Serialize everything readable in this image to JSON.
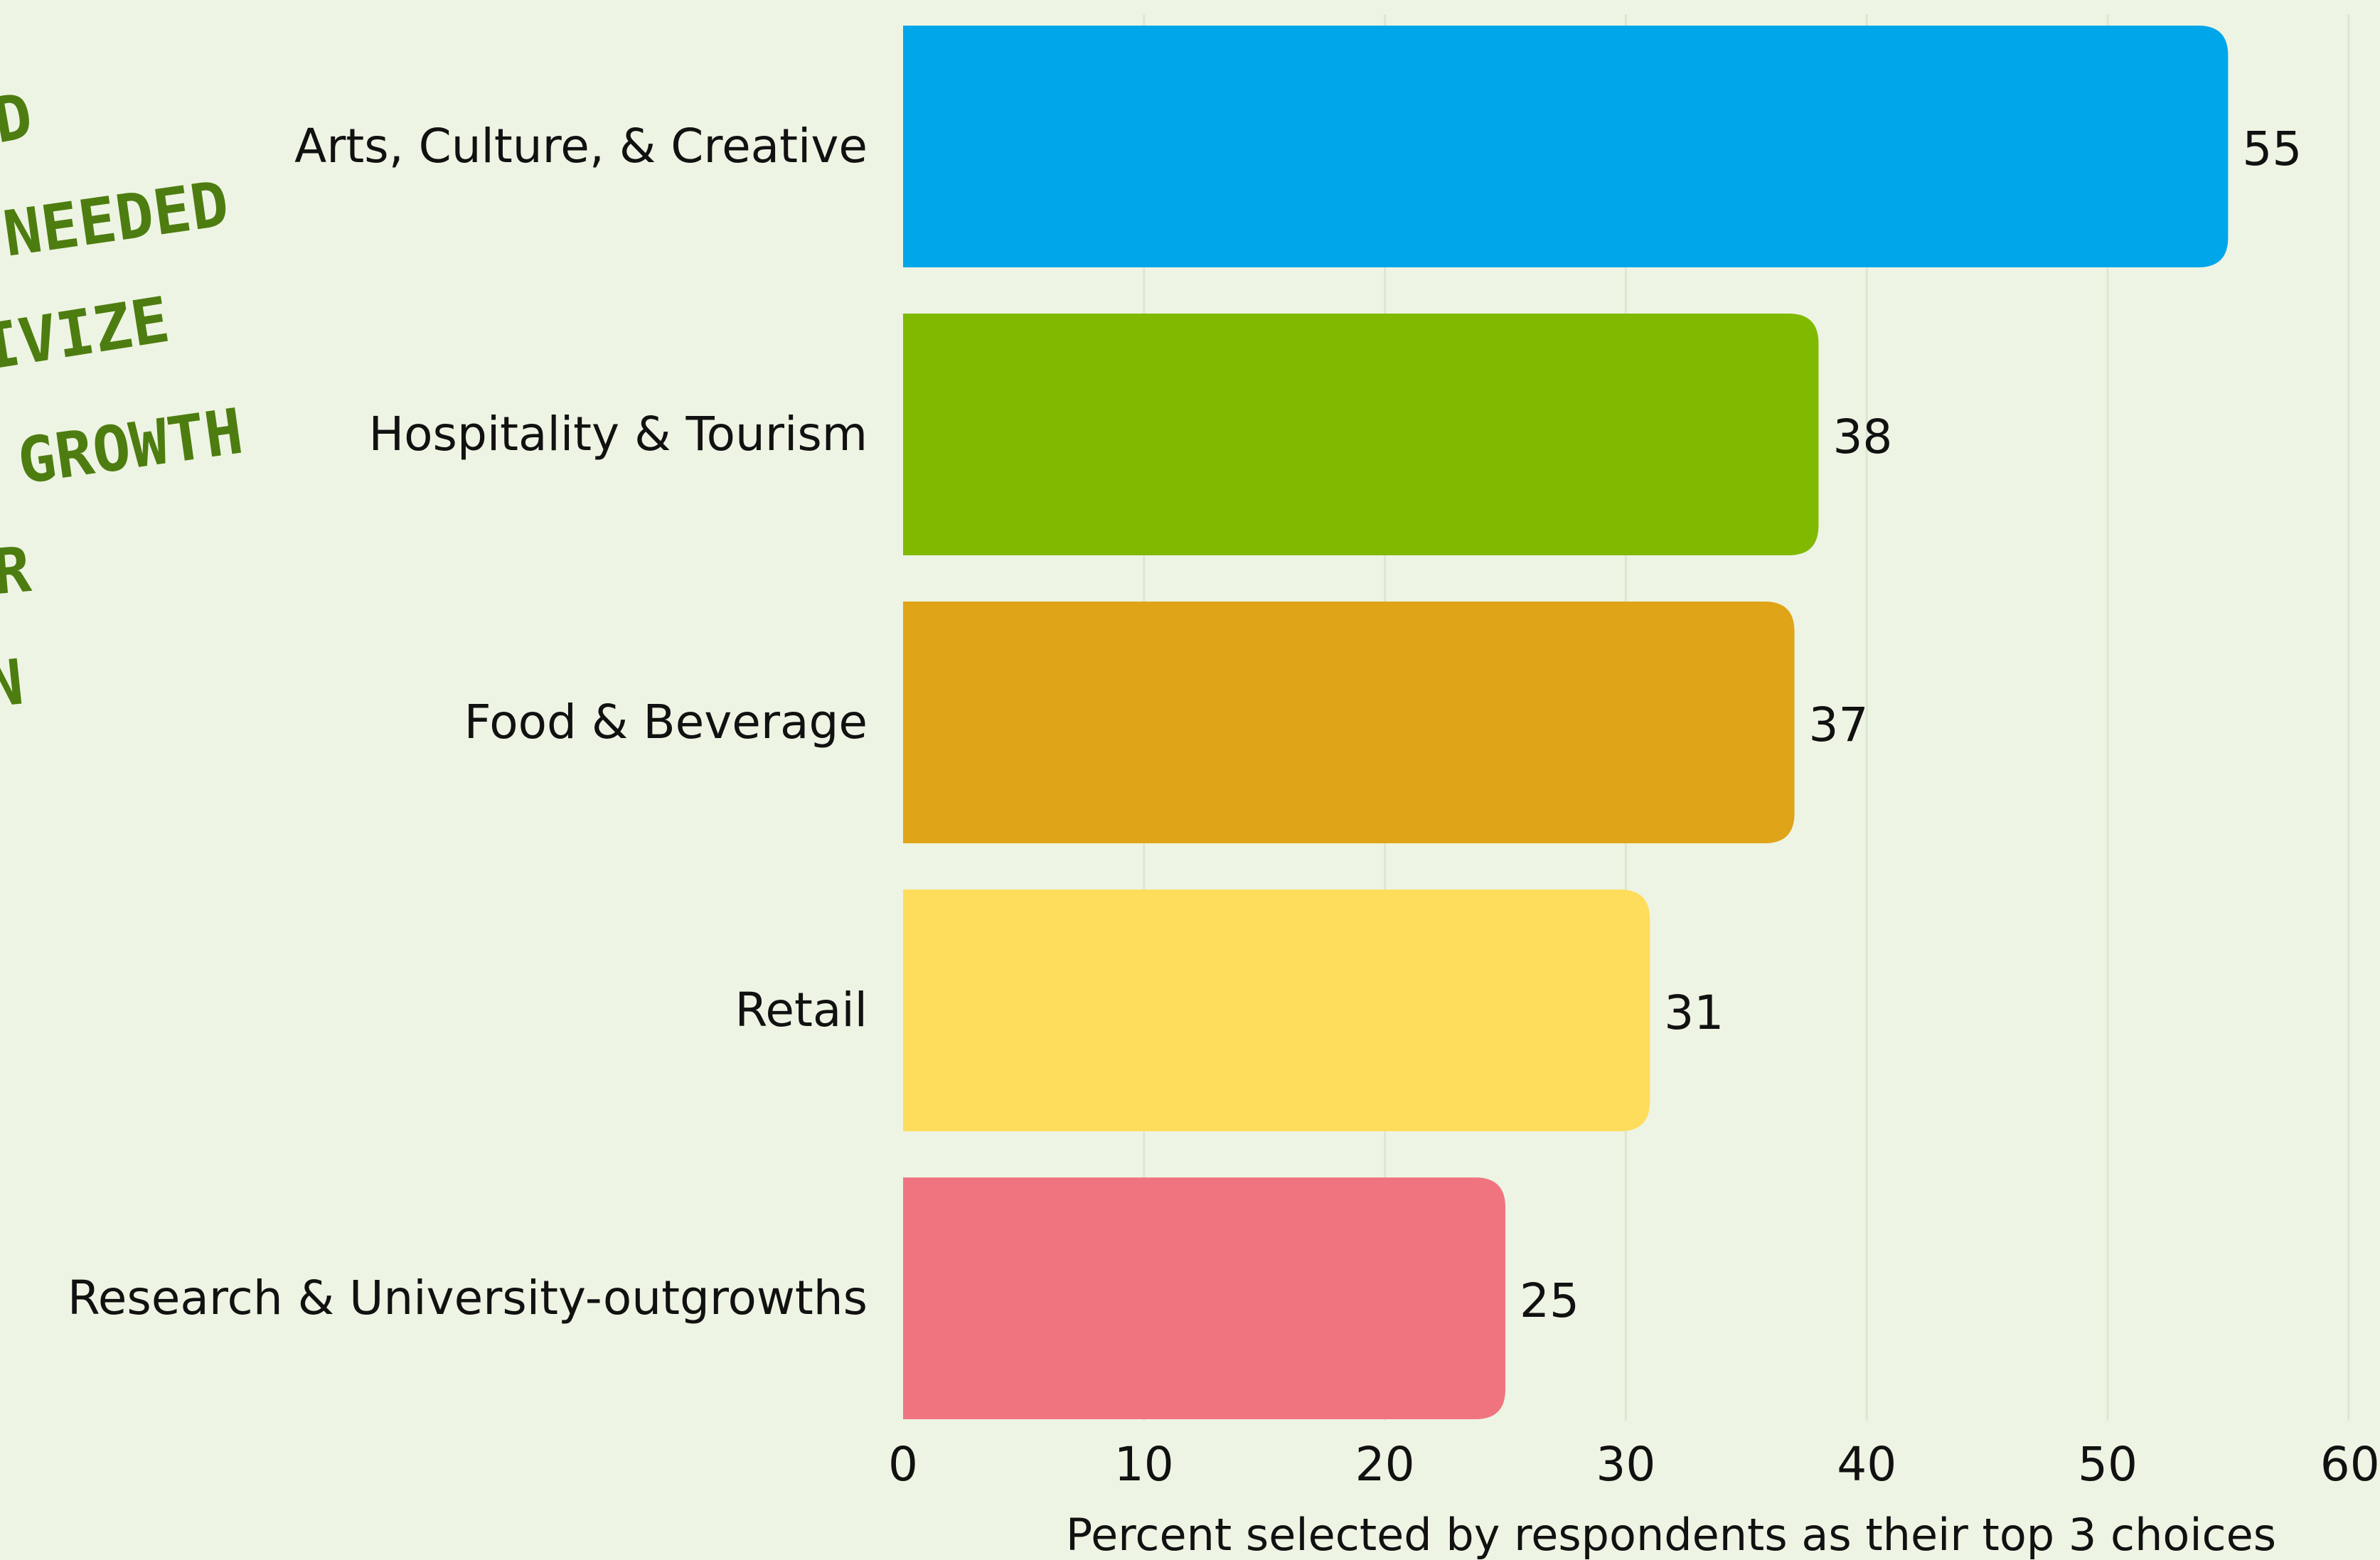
{
  "handwritten_notes": [
    "ND",
    "NEEDED",
    "IVIZE",
    "GROWTH",
    "ER",
    "WN"
  ],
  "chart_data": {
    "type": "bar",
    "orientation": "horizontal",
    "categories": [
      "Arts, Culture, & Creative",
      "Hospitality & Tourism",
      "Food & Beverage",
      "Retail",
      "Research & University-outgrowths"
    ],
    "values": [
      55,
      38,
      37,
      31,
      25
    ],
    "value_labels": [
      "55",
      "38",
      "37",
      "31",
      "25"
    ],
    "colors": [
      "#00a6ea",
      "#80ba00",
      "#e0a418",
      "#fedd5c",
      "#f07480"
    ],
    "xlabel": "Percent selected by respondents as their top 3 choices",
    "ylabel": "",
    "xlim": [
      0,
      60
    ],
    "xticks": [
      0,
      10,
      20,
      30,
      40,
      50,
      60
    ],
    "xtick_labels": [
      "0",
      "10",
      "20",
      "30",
      "40",
      "50",
      "60"
    ],
    "grid": true,
    "handwritten_color": "#4d7d10"
  }
}
